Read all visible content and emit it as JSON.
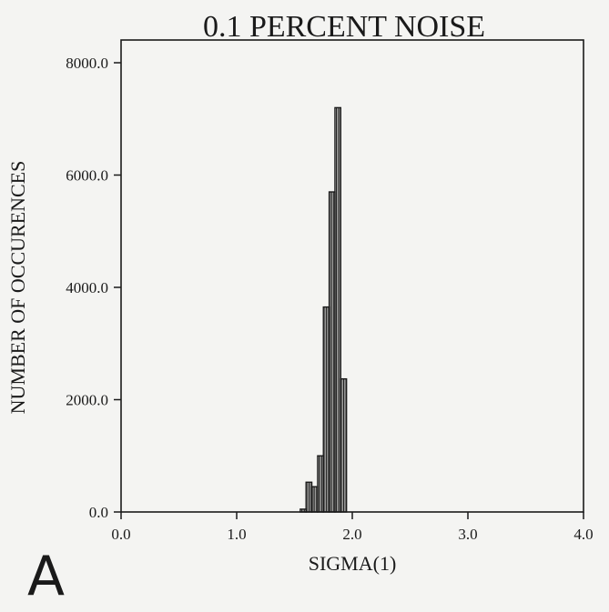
{
  "panel_label": "A",
  "chart_data": {
    "type": "bar",
    "title": "0.1 PERCENT NOISE",
    "xlabel": "SIGMA(1)",
    "ylabel": "NUMBER OF OCCURENCES",
    "xlim": [
      0.0,
      4.0
    ],
    "ylim": [
      0.0,
      8000.0
    ],
    "x_ticks": [
      "0.0",
      "1.0",
      "2.0",
      "3.0",
      "4.0"
    ],
    "y_ticks": [
      "0.0",
      "2000.0",
      "4000.0",
      "6000.0",
      "8000.0"
    ],
    "bin_width": 0.05,
    "bins": [
      {
        "x0": 1.55,
        "value": 50
      },
      {
        "x0": 1.6,
        "value": 530
      },
      {
        "x0": 1.65,
        "value": 450
      },
      {
        "x0": 1.7,
        "value": 1000
      },
      {
        "x0": 1.75,
        "value": 3650
      },
      {
        "x0": 1.8,
        "value": 5700
      },
      {
        "x0": 1.85,
        "value": 7200
      },
      {
        "x0": 1.9,
        "value": 2370
      }
    ],
    "grid": false,
    "colors": {
      "ink": "#1a1a1a",
      "paper": "#f4f4f2"
    }
  }
}
